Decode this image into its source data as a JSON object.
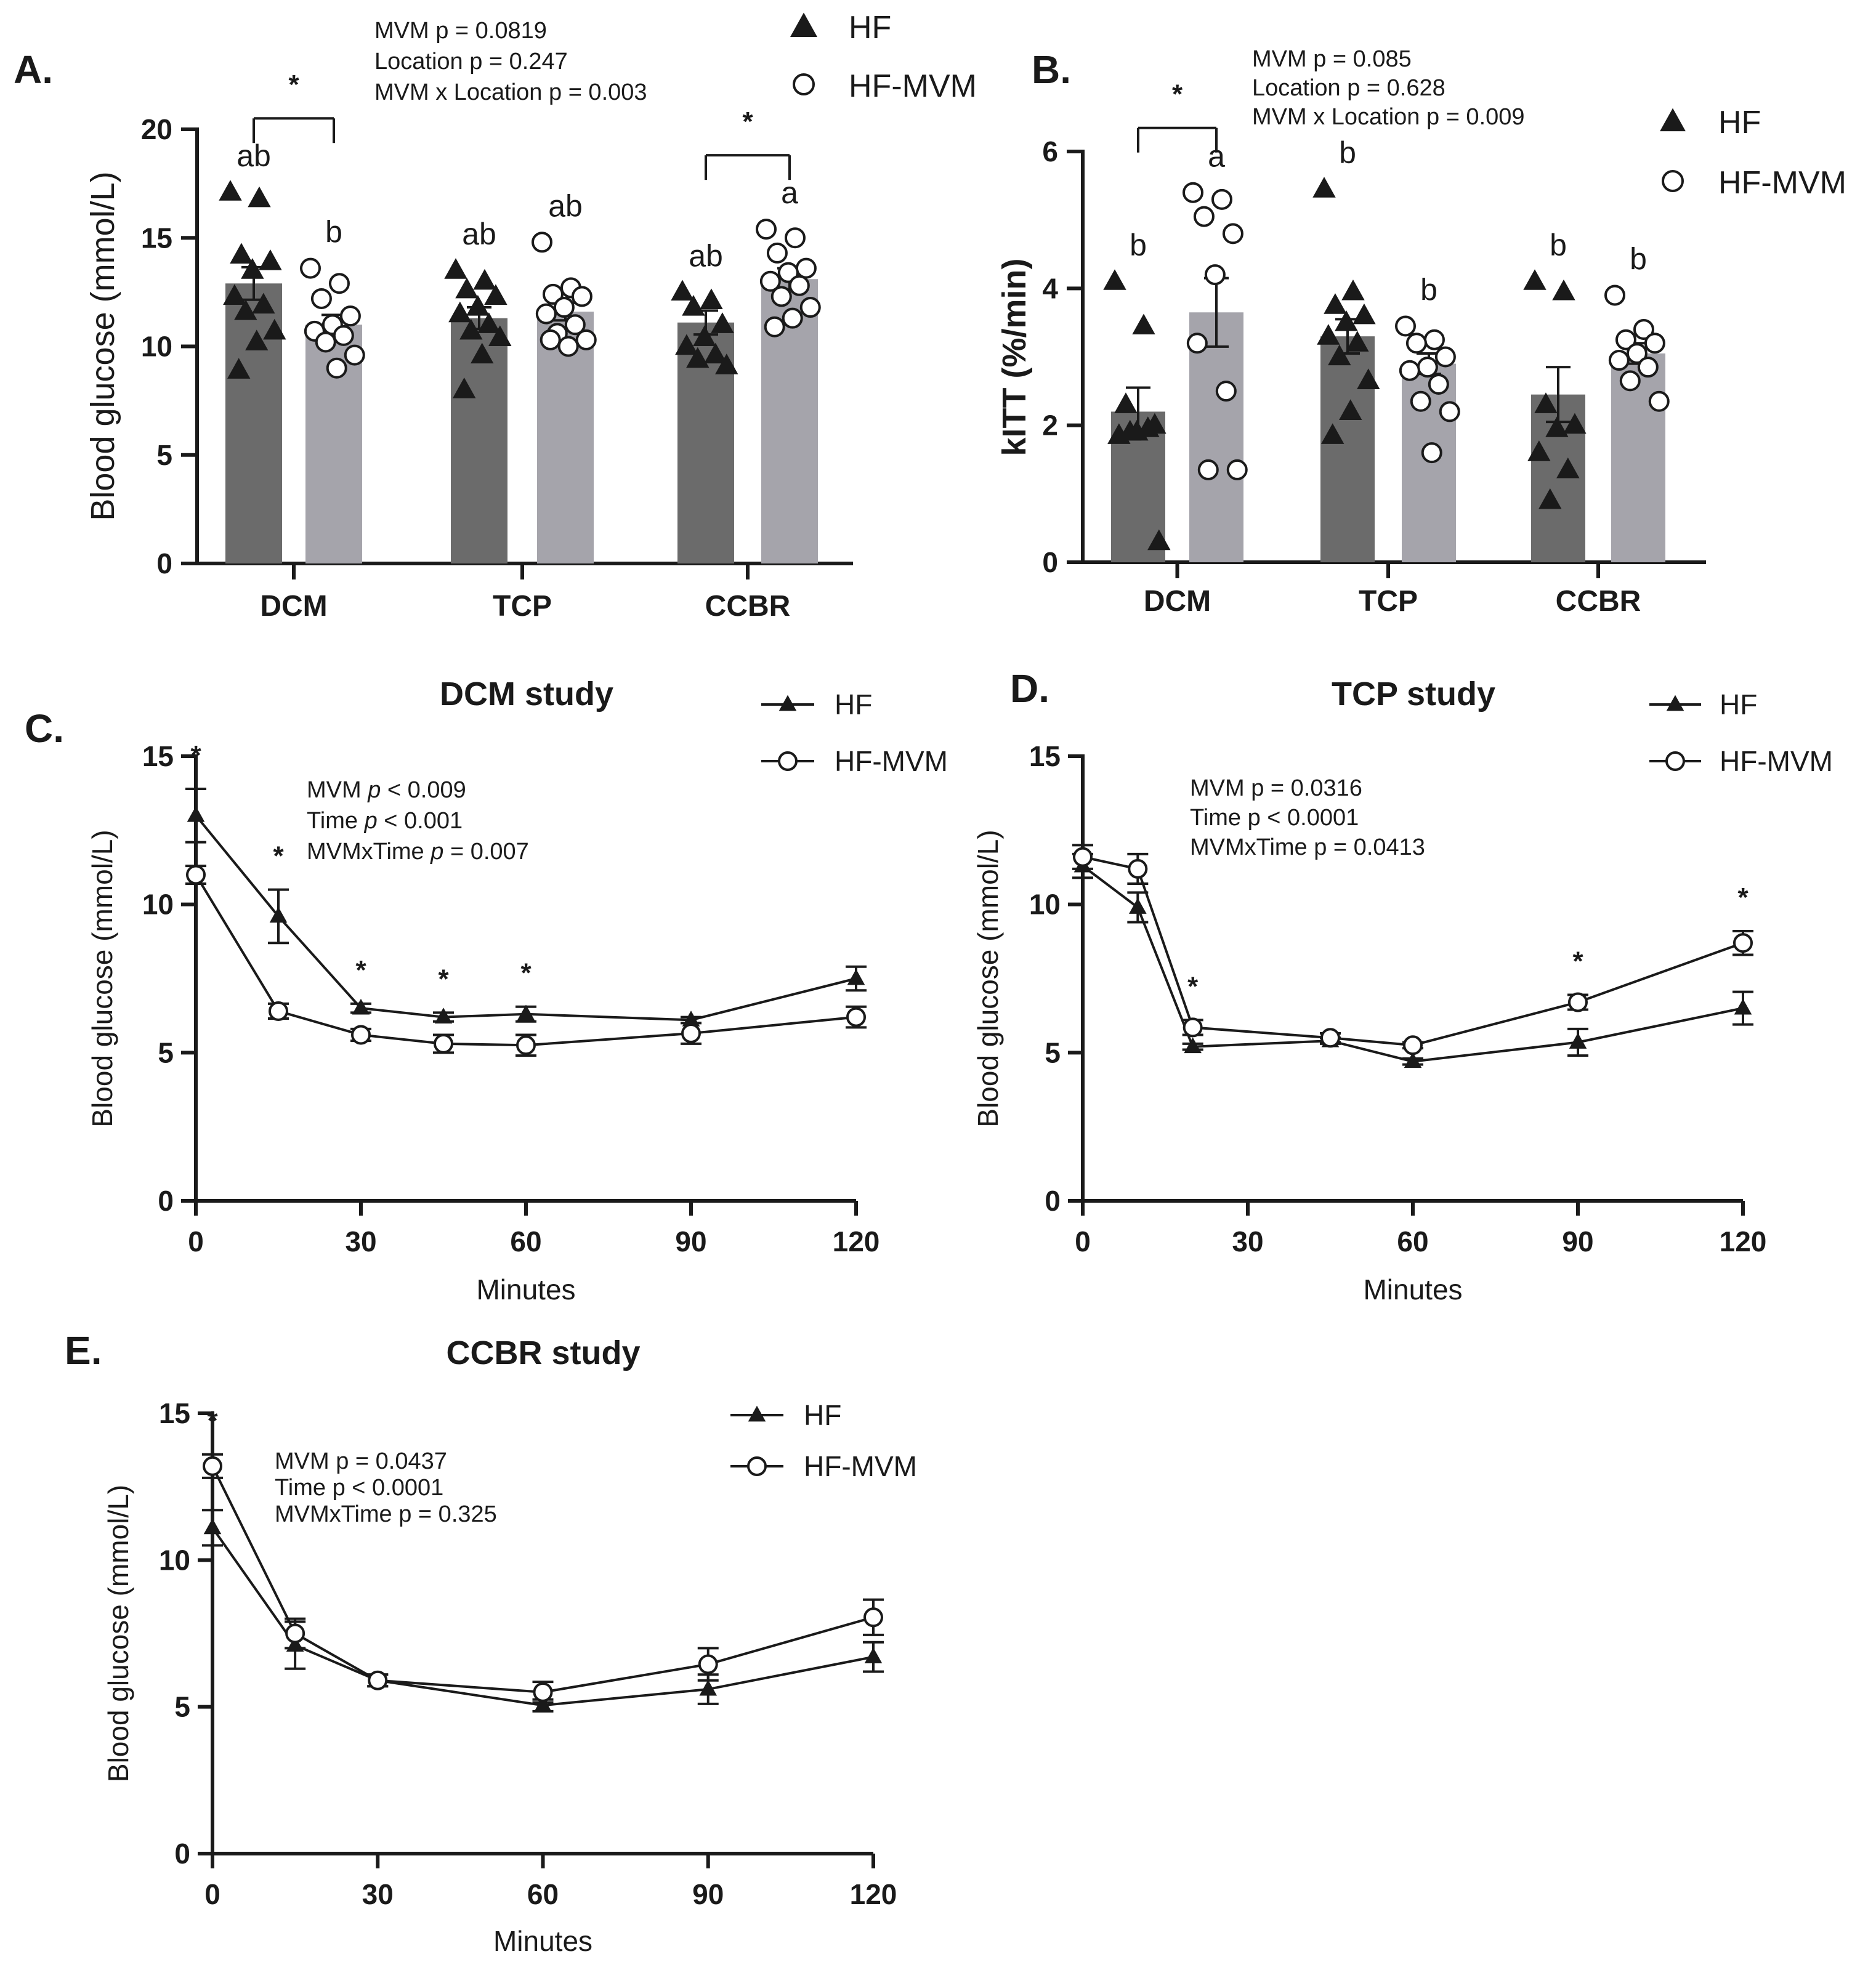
{
  "figure": {
    "panels": [
      {
        "id": "A",
        "letter": "A."
      },
      {
        "id": "B",
        "letter": "B."
      },
      {
        "id": "C",
        "letter": "C."
      },
      {
        "id": "D",
        "letter": "D."
      },
      {
        "id": "E",
        "letter": "E."
      }
    ],
    "colors": {
      "hf_bar": "#6b6b6b",
      "hfmvm_bar": "#a5a4ab",
      "ink": "#1a1a1a"
    }
  },
  "chart_data": [
    {
      "id": "A",
      "type": "bar",
      "ylabel": "Blood glucose (mmol/L)",
      "ylim": [
        0,
        20
      ],
      "yticks": [
        0,
        5,
        10,
        15,
        20
      ],
      "categories": [
        "DCM",
        "TCP",
        "CCBR"
      ],
      "legend": [
        "HF",
        "HF-MVM"
      ],
      "stats": [
        "MVM p = 0.0819",
        "Location p = 0.247",
        "MVM x Location p = 0.003"
      ],
      "series": [
        {
          "name": "HF",
          "values": [
            12.9,
            11.3,
            11.1
          ],
          "sem": [
            0.75,
            0.5,
            0.55
          ],
          "letters": [
            "ab",
            "ab",
            "ab"
          ],
          "points": [
            [
              17.1,
              16.8,
              14.2,
              13.9,
              13.5,
              12.3,
              11.9,
              11.6,
              10.7,
              10.2,
              8.9
            ],
            [
              13.5,
              13.0,
              12.6,
              12.3,
              11.8,
              11.5,
              11.0,
              10.7,
              10.4,
              9.6,
              8.0
            ],
            [
              12.5,
              12.1,
              11.8,
              11.0,
              10.4,
              10.0,
              9.6,
              9.4,
              9.1
            ]
          ]
        },
        {
          "name": "HF-MVM",
          "values": [
            11.0,
            11.6,
            13.1
          ],
          "sem": [
            0.45,
            0.4,
            0.5
          ],
          "letters": [
            "b",
            "ab",
            "a"
          ],
          "points": [
            [
              13.6,
              12.9,
              12.2,
              11.4,
              11.0,
              10.7,
              10.5,
              10.2,
              9.6,
              9.0
            ],
            [
              14.8,
              12.7,
              12.4,
              12.3,
              11.8,
              11.5,
              11.0,
              10.6,
              10.3,
              10.0,
              10.3
            ],
            [
              15.4,
              15.0,
              14.3,
              13.6,
              13.4,
              13.0,
              12.8,
              12.3,
              11.8,
              11.3,
              10.9
            ]
          ]
        }
      ],
      "significance": [
        {
          "category": "DCM",
          "label": "*"
        },
        {
          "category": "CCBR",
          "label": "*"
        }
      ]
    },
    {
      "id": "B",
      "type": "bar",
      "ylabel": "kITT (%/min)",
      "ylim": [
        0,
        6
      ],
      "yticks": [
        0,
        2,
        4,
        6
      ],
      "categories": [
        "DCM",
        "TCP",
        "CCBR"
      ],
      "legend": [
        "HF",
        "HF-MVM"
      ],
      "stats": [
        "MVM p = 0.085",
        "Location p = 0.628",
        "MVM x Location p = 0.009"
      ],
      "series": [
        {
          "name": "HF",
          "values": [
            2.2,
            3.3,
            2.45
          ],
          "sem": [
            0.35,
            0.25,
            0.4
          ],
          "letters": [
            "b",
            "b",
            "b"
          ],
          "points": [
            [
              4.1,
              3.45,
              2.3,
              2.0,
              1.9,
              1.85,
              1.95,
              1.9,
              0.3
            ],
            [
              5.45,
              3.95,
              3.75,
              3.6,
              3.5,
              3.3,
              3.2,
              3.0,
              2.65,
              2.2,
              1.85
            ],
            [
              4.1,
              3.95,
              2.3,
              2.0,
              1.95,
              1.6,
              1.35,
              0.9
            ]
          ]
        },
        {
          "name": "HF-MVM",
          "values": [
            3.65,
            2.9,
            3.05
          ],
          "sem": [
            0.5,
            0.15,
            0.15
          ],
          "letters": [
            "a",
            "b",
            "b"
          ],
          "points": [
            [
              5.4,
              5.3,
              5.05,
              4.8,
              4.2,
              3.2,
              2.5,
              1.35,
              1.35
            ],
            [
              3.45,
              3.25,
              3.2,
              3.0,
              2.85,
              2.8,
              2.6,
              2.35,
              2.2,
              1.6
            ],
            [
              3.9,
              3.4,
              3.25,
              3.2,
              3.05,
              2.95,
              2.85,
              2.65,
              2.35
            ]
          ]
        }
      ],
      "significance": [
        {
          "category": "DCM",
          "label": "*"
        }
      ]
    },
    {
      "id": "C",
      "type": "line",
      "title": "DCM study",
      "xlabel": "Minutes",
      "ylabel": "Blood glucose (mmol/L)",
      "xlim": [
        0,
        120
      ],
      "ylim": [
        0,
        15
      ],
      "xticks": [
        0,
        30,
        60,
        90,
        120
      ],
      "yticks": [
        0,
        5,
        10,
        15
      ],
      "legend": [
        "HF",
        "HF-MVM"
      ],
      "stats": [
        "MVM |p| < 0.009",
        "Time |p| < 0.001",
        "MVMxTime |p| = 0.007"
      ],
      "x": [
        0,
        15,
        30,
        45,
        60,
        90,
        120
      ],
      "series": [
        {
          "name": "HF",
          "marker": "triangle",
          "values": [
            13.0,
            9.6,
            6.5,
            6.2,
            6.3,
            6.1,
            7.5
          ],
          "sem": [
            0.9,
            0.9,
            0.15,
            0.15,
            0.25,
            0.1,
            0.4
          ]
        },
        {
          "name": "HF-MVM",
          "marker": "circle",
          "values": [
            11.0,
            6.4,
            5.6,
            5.3,
            5.25,
            5.65,
            6.2
          ],
          "sem": [
            0.3,
            0.25,
            0.2,
            0.3,
            0.35,
            0.35,
            0.35
          ]
        }
      ],
      "significance_x": [
        0,
        15,
        30,
        45,
        60
      ],
      "significance_label": "*"
    },
    {
      "id": "D",
      "type": "line",
      "title": "TCP study",
      "xlabel": "Minutes",
      "ylabel": "Blood glucose (mmol/L)",
      "xlim": [
        0,
        120
      ],
      "ylim": [
        0,
        15
      ],
      "xticks": [
        0,
        30,
        60,
        90,
        120
      ],
      "yticks": [
        0,
        5,
        10,
        15
      ],
      "legend": [
        "HF",
        "HF-MVM"
      ],
      "stats": [
        "MVM p = 0.0316",
        "Time p < 0.0001",
        "MVMxTime p = 0.0413"
      ],
      "x": [
        0,
        10,
        20,
        45,
        60,
        90,
        120
      ],
      "series": [
        {
          "name": "HF",
          "marker": "triangle",
          "values": [
            11.3,
            9.9,
            5.2,
            5.4,
            4.7,
            5.35,
            6.5
          ],
          "sem": [
            0.4,
            0.5,
            0.1,
            0.1,
            0.1,
            0.45,
            0.55
          ]
        },
        {
          "name": "HF-MVM",
          "marker": "circle",
          "values": [
            11.6,
            11.2,
            5.85,
            5.5,
            5.25,
            6.7,
            8.7
          ],
          "sem": [
            0.4,
            0.5,
            0.25,
            0.15,
            0.1,
            0.25,
            0.4
          ]
        }
      ],
      "significance_x": [
        20,
        90,
        120
      ],
      "significance_label": "*"
    },
    {
      "id": "E",
      "type": "line",
      "title": "CCBR study",
      "xlabel": "Minutes",
      "ylabel": "Blood glucose (mmol/L)",
      "xlim": [
        0,
        120
      ],
      "ylim": [
        0,
        15
      ],
      "xticks": [
        0,
        30,
        60,
        90,
        120
      ],
      "yticks": [
        0,
        5,
        10,
        15
      ],
      "legend": [
        "HF",
        "HF-MVM"
      ],
      "stats": [
        "MVM p = 0.0437",
        "Time p < 0.0001",
        "MVMxTime p = 0.325"
      ],
      "x": [
        0,
        15,
        30,
        60,
        90,
        120
      ],
      "series": [
        {
          "name": "HF",
          "marker": "triangle",
          "values": [
            11.1,
            7.1,
            5.9,
            5.05,
            5.6,
            6.7
          ],
          "sem": [
            0.6,
            0.8,
            0.2,
            0.2,
            0.5,
            0.5
          ]
        },
        {
          "name": "HF-MVM",
          "marker": "circle",
          "values": [
            13.2,
            7.5,
            5.9,
            5.5,
            6.45,
            8.05
          ],
          "sem": [
            0.4,
            0.5,
            0.2,
            0.35,
            0.55,
            0.6
          ]
        }
      ],
      "significance_x": [
        0
      ],
      "significance_label": "*"
    }
  ]
}
